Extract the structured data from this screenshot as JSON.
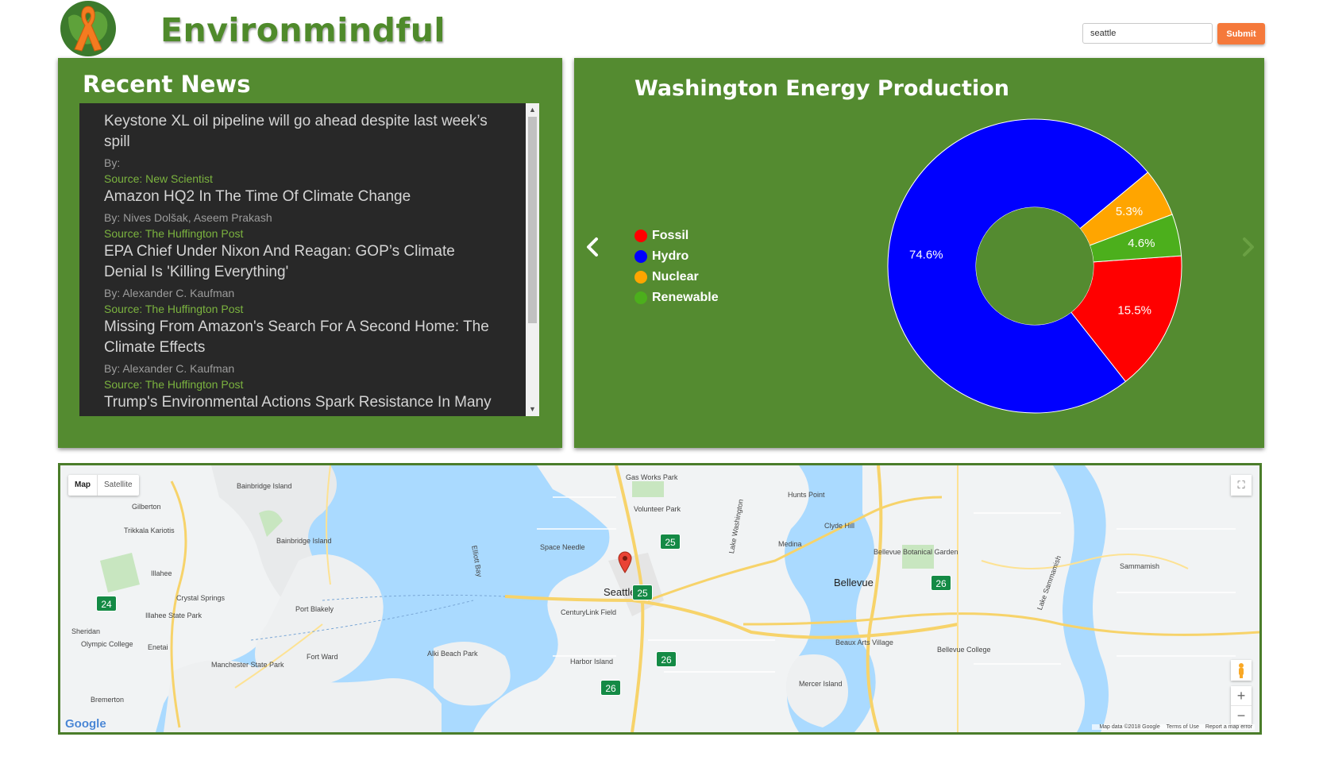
{
  "header": {
    "brand": "Environmindful",
    "search_value": "seattle",
    "submit_label": "Submit"
  },
  "news": {
    "title": "Recent News",
    "items": [
      {
        "title": "Keystone XL oil pipeline will go ahead despite last week’s spill",
        "by": "By:",
        "source": "Source: New Scientist"
      },
      {
        "title": "Amazon HQ2 In The Time Of Climate Change",
        "by": "By: Nives Dolšak, Aseem Prakash",
        "source": "Source: The Huffington Post"
      },
      {
        "title": "EPA Chief Under Nixon And Reagan: GOP’s Climate Denial Is 'Killing Everything'",
        "by": "By: Alexander C. Kaufman",
        "source": "Source: The Huffington Post"
      },
      {
        "title": "Missing From Amazon's Search For A Second Home: The Climate Effects",
        "by": "By: Alexander C. Kaufman",
        "source": "Source: The Huffington Post"
      },
      {
        "title": "Trump's Environmental Actions Spark Resistance In Many States",
        "by": "",
        "source": ""
      }
    ]
  },
  "energy": {
    "title": "Washington Energy Production"
  },
  "chart_data": {
    "type": "pie",
    "title": "Washington Energy Production",
    "donut": true,
    "legend_position": "left",
    "series": [
      {
        "name": "Fossil",
        "value": 15.5,
        "label": "15.5%",
        "color": "#ff0000"
      },
      {
        "name": "Hydro",
        "value": 74.6,
        "label": "74.6%",
        "color": "#0000ff"
      },
      {
        "name": "Nuclear",
        "value": 5.3,
        "label": "5.3%",
        "color": "#ffa500"
      },
      {
        "name": "Renewable",
        "value": 4.6,
        "label": "4.6%",
        "color": "#4caf1c"
      }
    ]
  },
  "map": {
    "map_label": "Map",
    "satellite_label": "Satellite",
    "google": "Google",
    "attribution": [
      "Map data ©2018 Google",
      "Terms of Use",
      "Report a map error"
    ],
    "places": [
      "Bainbridge Island",
      "Gilberton",
      "Trikkala Kariotis",
      "Bainbridge Island",
      "Illahee",
      "Crystal Springs",
      "Illahee State Park",
      "Port Blakely",
      "Sheridan",
      "Olympic College",
      "Enetai",
      "Manchester State Park",
      "Fort Ward",
      "Bremerton",
      "Space Needle",
      "Volunteer Park",
      "Gas Works Park",
      "Hunts Point",
      "Clyde Hill",
      "Medina",
      "Bellevue",
      "Bellevue Botanical Garden",
      "Sammamish",
      "Seattle",
      "CenturyLink Field",
      "Alki Beach Park",
      "Harbor Island",
      "Mercer Island",
      "Beaux Arts Village",
      "Bellevue College",
      "Lake Washington",
      "Lake Sammamish",
      "Elliott Bay"
    ],
    "highways": [
      "24",
      "25",
      "25",
      "26",
      "26",
      "26"
    ]
  },
  "colors": {
    "brand_green": "#548b30",
    "accent_orange": "#f5793b",
    "news_bg": "#282828",
    "source_green": "#7bb33f"
  }
}
